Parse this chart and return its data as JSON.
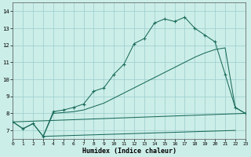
{
  "xlabel": "Humidex (Indice chaleur)",
  "bg_color": "#cceee8",
  "grid_color": "#99cccc",
  "line_color": "#1a6b5a",
  "xlim": [
    0,
    23
  ],
  "ylim": [
    6.5,
    14.5
  ],
  "xticks": [
    0,
    1,
    2,
    3,
    4,
    5,
    6,
    7,
    8,
    9,
    10,
    11,
    12,
    13,
    14,
    15,
    16,
    17,
    18,
    19,
    20,
    21,
    22,
    23
  ],
  "yticks": [
    7,
    8,
    9,
    10,
    11,
    12,
    13,
    14
  ],
  "curve1_x": [
    0,
    1,
    2,
    3,
    4,
    5,
    6,
    7,
    8,
    9,
    10,
    11,
    12,
    13,
    14,
    15,
    16,
    17,
    18,
    19,
    20,
    21,
    22,
    23
  ],
  "curve1_y": [
    7.5,
    7.1,
    7.4,
    6.65,
    8.1,
    8.2,
    8.35,
    8.55,
    9.3,
    9.5,
    10.3,
    10.9,
    12.1,
    12.4,
    13.3,
    13.55,
    13.4,
    13.65,
    13.0,
    12.6,
    12.2,
    10.3,
    8.35,
    8.0
  ],
  "curve2_x": [
    0,
    1,
    2,
    3,
    4,
    5,
    6,
    7,
    8,
    9,
    10,
    11,
    12,
    13,
    14,
    15,
    16,
    17,
    18,
    19,
    20,
    21,
    22,
    23
  ],
  "curve2_y": [
    7.5,
    7.1,
    7.4,
    6.65,
    8.0,
    8.05,
    8.1,
    8.2,
    8.4,
    8.6,
    8.9,
    9.2,
    9.5,
    9.8,
    10.1,
    10.4,
    10.7,
    11.0,
    11.3,
    11.55,
    11.75,
    11.85,
    8.35,
    8.0
  ],
  "line3_x": [
    0,
    23
  ],
  "line3_y": [
    7.5,
    8.0
  ],
  "line4_x": [
    3,
    22
  ],
  "line4_y": [
    6.65,
    7.0
  ]
}
